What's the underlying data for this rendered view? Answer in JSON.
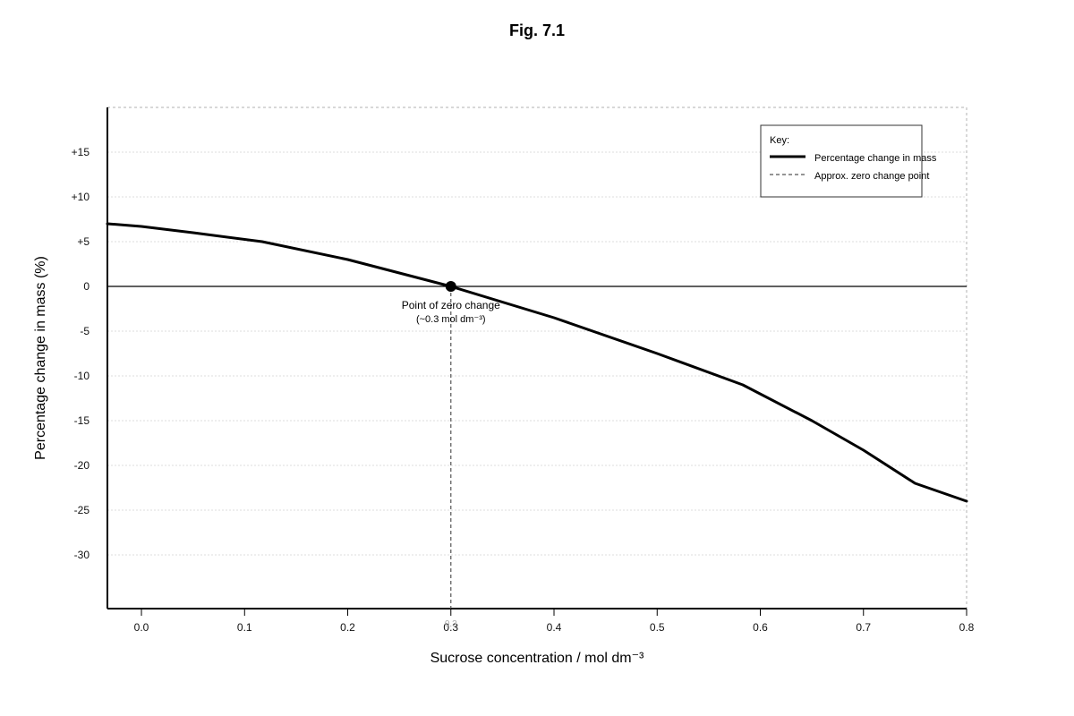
{
  "chart_data": {
    "type": "line",
    "title": "Fig. 7.1",
    "xlabel": "Sucrose concentration / mol dm⁻³",
    "ylabel": "Percentage change in mass (%)",
    "xlim": [
      -0.033,
      0.8
    ],
    "ylim": [
      -36,
      20
    ],
    "x_ticks": [
      {
        "value": 0.0,
        "label": "0.0"
      },
      {
        "value": 0.1,
        "label": "0.1"
      },
      {
        "value": 0.2,
        "label": "0.2"
      },
      {
        "value": 0.3,
        "label": "0.3"
      },
      {
        "value": 0.4,
        "label": "0.4"
      },
      {
        "value": 0.5,
        "label": "0.5"
      },
      {
        "value": 0.6,
        "label": "0.6"
      },
      {
        "value": 0.7,
        "label": "0.7"
      },
      {
        "value": 0.8,
        "label": "0.8"
      }
    ],
    "y_ticks": [
      {
        "value": 15,
        "label": "+15"
      },
      {
        "value": 10,
        "label": "+10"
      },
      {
        "value": 5,
        "label": "+5"
      },
      {
        "value": 0,
        "label": "0"
      },
      {
        "value": -5,
        "label": "-5"
      },
      {
        "value": -10,
        "label": "-10"
      },
      {
        "value": -15,
        "label": "-15"
      },
      {
        "value": -20,
        "label": "-20"
      },
      {
        "value": -25,
        "label": "-25"
      },
      {
        "value": -30,
        "label": "-30"
      }
    ],
    "grid": true,
    "series": [
      {
        "name": "Percentage change in mass",
        "color": "#000000",
        "x": [
          -0.033,
          0.0,
          0.05,
          0.117,
          0.2,
          0.3,
          0.4,
          0.5,
          0.583,
          0.65,
          0.7,
          0.75,
          0.8
        ],
        "y": [
          7.0,
          6.7,
          6.0,
          5.0,
          3.0,
          0.0,
          -3.5,
          -7.5,
          -11.0,
          -15.0,
          -18.3,
          -22.0,
          -24.0
        ]
      }
    ],
    "zero_change_point": {
      "x": 0.3,
      "y": 0
    },
    "reference_line_label": "0.3",
    "annotation": {
      "text": "Point of zero change",
      "subtext": "(~0.3 mol dm⁻³)"
    },
    "legend": {
      "position": "top-right",
      "title": "Key:",
      "items": [
        {
          "label": "Percentage change in mass",
          "style": "solid"
        },
        {
          "label": "Approx. zero change point",
          "style": "dashed"
        }
      ]
    }
  }
}
